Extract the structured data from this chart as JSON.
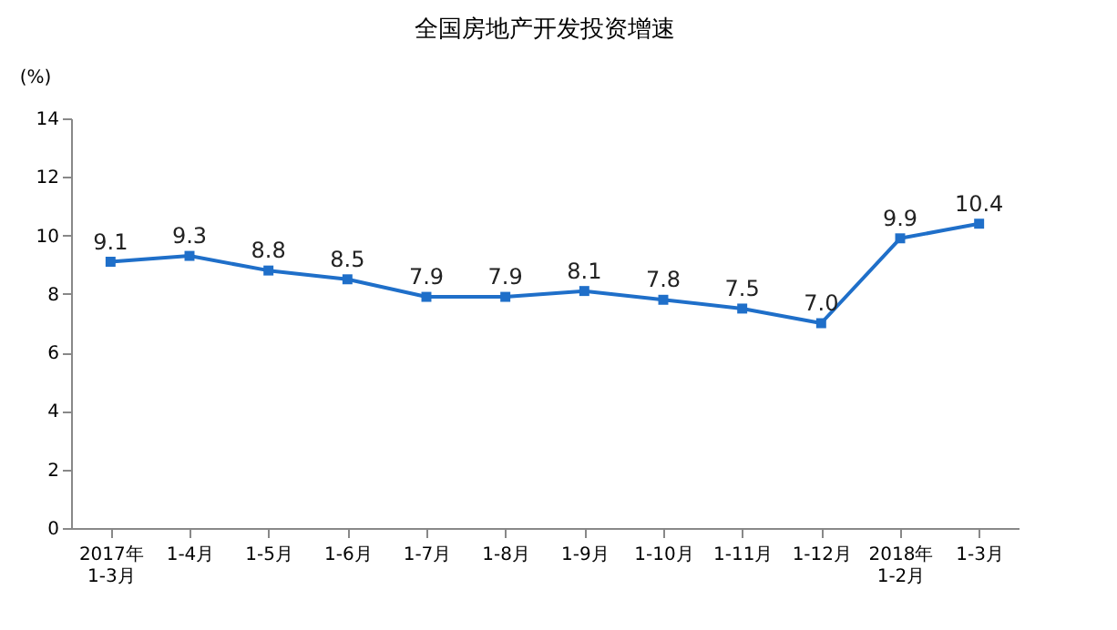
{
  "chart_data": {
    "type": "line",
    "title": "全国房地产开发投资增速",
    "ylabel": "(%)",
    "categories": [
      "2017年\n1-3月",
      "1-4月",
      "1-5月",
      "1-6月",
      "1-7月",
      "1-8月",
      "1-9月",
      "1-10月",
      "1-11月",
      "1-12月",
      "2018年\n1-2月",
      "1-3月"
    ],
    "series": [
      {
        "color": "#1f6fc9",
        "values": [
          9.1,
          9.3,
          8.8,
          8.5,
          7.9,
          7.9,
          8.1,
          7.8,
          7.5,
          7.0,
          9.9,
          10.4
        ],
        "value_labels": [
          "9.1",
          "9.3",
          "8.8",
          "8.5",
          "7.9",
          "7.9",
          "8.1",
          "7.8",
          "7.5",
          "7.0",
          "9.9",
          "10.4"
        ]
      }
    ],
    "ylim": [
      0,
      14
    ],
    "yticks": [
      0,
      2,
      4,
      6,
      8,
      10,
      12,
      14
    ],
    "grid": false,
    "marker": "square",
    "line_style": "solid"
  }
}
